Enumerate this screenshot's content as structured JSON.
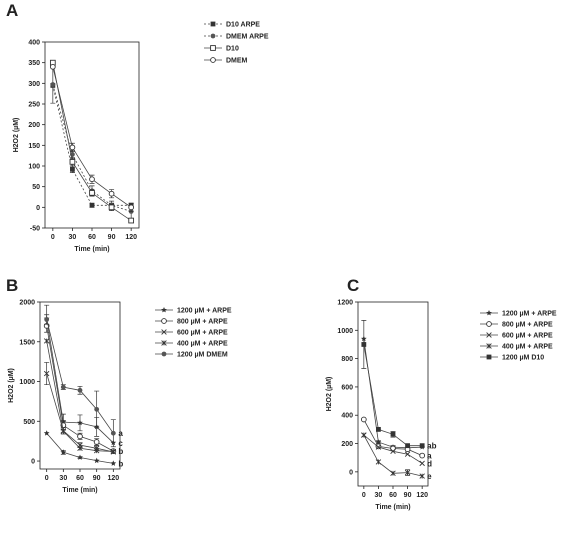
{
  "figure": {
    "panels": [
      "A",
      "B",
      "C"
    ]
  },
  "chart_data": [
    {
      "panel": "A",
      "type": "line",
      "xlabel": "Time (min)",
      "ylabel": "H2O2 (µM)",
      "x": [
        0,
        30,
        60,
        90,
        120
      ],
      "xlim": [
        -12,
        132
      ],
      "ylim": [
        -50,
        400
      ],
      "xticks": [
        0,
        30,
        60,
        90,
        120
      ],
      "yticks": [
        -50,
        0,
        50,
        100,
        150,
        200,
        250,
        300,
        350,
        400
      ],
      "grid": false,
      "legend_position": "top-right",
      "series": [
        {
          "name": "D10 ARPE",
          "marker": "square-filled",
          "dash": "dotted",
          "values": [
            295,
            92,
            5,
            5,
            5
          ],
          "err": [
            0,
            8,
            5,
            5,
            0
          ]
        },
        {
          "name": "DMEM ARPE",
          "marker": "circle-filled",
          "dash": "dotted",
          "values": [
            297,
            128,
            40,
            5,
            -10
          ],
          "err": [
            45,
            10,
            12,
            10,
            20
          ]
        },
        {
          "name": "D10",
          "marker": "square-open",
          "dash": "solid",
          "values": [
            350,
            110,
            35,
            0,
            -32
          ],
          "err": [
            0,
            10,
            8,
            8,
            5
          ]
        },
        {
          "name": "DMEM",
          "marker": "circle-open",
          "dash": "solid",
          "values": [
            340,
            145,
            68,
            33,
            0
          ],
          "err": [
            0,
            10,
            10,
            10,
            10
          ]
        }
      ]
    },
    {
      "panel": "B",
      "type": "line",
      "xlabel": "Time (min)",
      "ylabel": "H2O2 (µM)",
      "x": [
        0,
        30,
        60,
        90,
        120
      ],
      "xlim": [
        -12,
        132
      ],
      "ylim": [
        -100,
        2000
      ],
      "xticks": [
        0,
        30,
        60,
        90,
        120
      ],
      "yticks": [
        0,
        500,
        1000,
        1500,
        2000
      ],
      "grid": false,
      "legend_position": "top-right",
      "series": [
        {
          "name": "1200 µM + ARPE",
          "marker": "star",
          "values": [
            1790,
            490,
            480,
            430,
            230
          ],
          "err": [
            170,
            100,
            100,
            120,
            0
          ]
        },
        {
          "name": "800  µM + ARPE",
          "marker": "circle-open",
          "values": [
            1700,
            450,
            310,
            240,
            125
          ],
          "err": [
            0,
            60,
            40,
            40,
            0
          ]
        },
        {
          "name": "600  µM + ARPE",
          "marker": "cross",
          "values": [
            1100,
            380,
            200,
            160,
            115
          ],
          "err": [
            140,
            40,
            30,
            30,
            0
          ]
        },
        {
          "name": "400  µM + ARPE",
          "marker": "asterisk",
          "values": [
            1510,
            375,
            160,
            130,
            120
          ],
          "err": [
            0,
            0,
            0,
            0,
            0
          ]
        },
        {
          "name": "1200 µM DMEM",
          "marker": "circle-filled",
          "values": [
            1780,
            930,
            890,
            650,
            350
          ],
          "err": [
            60,
            30,
            50,
            230,
            170
          ]
        },
        {
          "name": "",
          "marker": "star",
          "values": [
            350,
            110,
            45,
            5,
            -30
          ],
          "err": [
            0,
            25,
            10,
            0,
            0
          ]
        }
      ],
      "annotations": [
        {
          "label": "a",
          "x": 120,
          "y": 350
        },
        {
          "label": "c",
          "x": 120,
          "y": 230
        },
        {
          "label": "b",
          "x": 120,
          "y": 125
        },
        {
          "label": "b",
          "x": 120,
          "y": -30
        }
      ]
    },
    {
      "panel": "C",
      "type": "line",
      "xlabel": "Time (min)",
      "ylabel": "H2O2 (µM)",
      "x": [
        0,
        30,
        60,
        90,
        120
      ],
      "xlim": [
        -12,
        132
      ],
      "ylim": [
        -100,
        1200
      ],
      "xticks": [
        0,
        30,
        60,
        90,
        120
      ],
      "yticks": [
        0,
        200,
        400,
        600,
        800,
        1000,
        1200
      ],
      "grid": false,
      "legend_position": "top-right",
      "series": [
        {
          "name": "1200 µM + ARPE",
          "marker": "star",
          "values": [
            940,
            210,
            175,
            170,
            175
          ],
          "err": [
            0,
            10,
            10,
            0,
            0
          ]
        },
        {
          "name": "800 µM + ARPE",
          "marker": "circle-open",
          "values": [
            370,
            180,
            165,
            160,
            115
          ],
          "err": [
            0,
            0,
            0,
            0,
            0
          ]
        },
        {
          "name": "600 µM + ARPE",
          "marker": "cross",
          "values": [
            260,
            175,
            145,
            125,
            60
          ],
          "err": [
            0,
            0,
            0,
            0,
            0
          ]
        },
        {
          "name": "400 µM + ARPE",
          "marker": "asterisk",
          "values": [
            260,
            70,
            -10,
            -5,
            -30
          ],
          "err": [
            0,
            0,
            0,
            20,
            0
          ]
        },
        {
          "name": "1200 µM D10",
          "marker": "square-filled",
          "values": [
            900,
            300,
            265,
            185,
            185
          ],
          "err": [
            170,
            0,
            20,
            0,
            0
          ]
        }
      ],
      "annotations": [
        {
          "label": "ab",
          "x": 120,
          "y": 185
        },
        {
          "label": "a",
          "x": 120,
          "y": 115
        },
        {
          "label": "d",
          "x": 120,
          "y": 60
        },
        {
          "label": "e",
          "x": 120,
          "y": -30
        }
      ]
    }
  ]
}
